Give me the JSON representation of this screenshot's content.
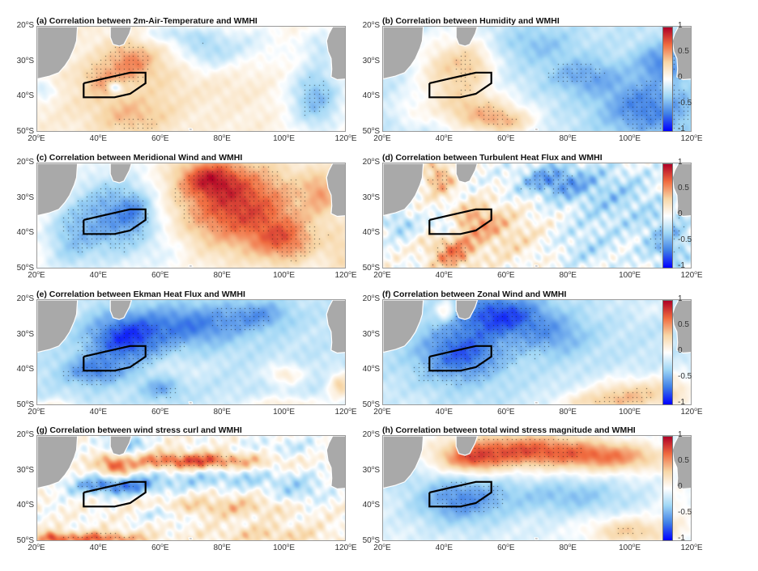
{
  "chart_data": {
    "type": "heatmap",
    "layout": "4x2 grid of correlation maps",
    "xlim": [
      20,
      120
    ],
    "ylim": [
      -50,
      -20
    ],
    "x_ticks": [
      {
        "v": 20,
        "label": "20",
        "unit": "E"
      },
      {
        "v": 40,
        "label": "40",
        "unit": "E"
      },
      {
        "v": 60,
        "label": "60",
        "unit": "E"
      },
      {
        "v": 80,
        "label": "80",
        "unit": "E"
      },
      {
        "v": 100,
        "label": "100",
        "unit": "E"
      },
      {
        "v": 120,
        "label": "120",
        "unit": "E"
      }
    ],
    "y_ticks": [
      {
        "v": -20,
        "label": "20",
        "unit": "S"
      },
      {
        "v": -30,
        "label": "30",
        "unit": "S"
      },
      {
        "v": -40,
        "label": "40",
        "unit": "S"
      },
      {
        "v": -50,
        "label": "50",
        "unit": "S"
      }
    ],
    "degree_symbol": "o",
    "colorbar": {
      "range": [
        -1,
        1
      ],
      "ticks": [
        {
          "v": 1,
          "label": "1"
        },
        {
          "v": 0.5,
          "label": "0.5"
        },
        {
          "v": 0,
          "label": "0"
        },
        {
          "v": -0.5,
          "label": "-0.5"
        },
        {
          "v": -1,
          "label": "-1"
        }
      ],
      "colors": [
        "#0000ff",
        "#3f7fe6",
        "#9fd6f5",
        "#ffffff",
        "#f7d6a6",
        "#f06b3f",
        "#b00026"
      ]
    },
    "box_region": [
      [
        35,
        -36
      ],
      [
        50,
        -33
      ],
      [
        55,
        -33
      ],
      [
        55,
        -36
      ],
      [
        50,
        -39
      ],
      [
        45,
        -40
      ],
      [
        35,
        -40
      ],
      [
        35,
        -36
      ]
    ],
    "land_color": "#a9a9a9",
    "panels": [
      {
        "id": "a",
        "title": "(a) Correlation between 2m-Air-Temperature and WMHI",
        "colorbar": false,
        "base": 0.12,
        "blobs": [
          [
            50,
            -30,
            8,
            6,
            0.45
          ],
          [
            40,
            -35,
            6,
            5,
            0.3
          ],
          [
            50,
            -45,
            12,
            6,
            0.3
          ],
          [
            30,
            -40,
            8,
            6,
            0.05
          ],
          [
            45,
            -37,
            2,
            1.5,
            -0.5
          ],
          [
            75,
            -27,
            10,
            5,
            -0.35
          ],
          [
            65,
            -22,
            12,
            3,
            -0.3
          ],
          [
            90,
            -24,
            12,
            6,
            -0.2
          ],
          [
            110,
            -40,
            9,
            10,
            -0.55
          ],
          [
            112,
            -25,
            6,
            5,
            -0.25
          ],
          [
            80,
            -38,
            12,
            5,
            0.05
          ],
          [
            22,
            -38,
            4,
            3,
            -0.3
          ],
          [
            62,
            -35,
            8,
            10,
            0.1
          ]
        ],
        "stipple": [
          [
            44,
            -30,
            12,
            8,
            0.4
          ],
          [
            52,
            -48,
            8,
            3,
            0.3
          ],
          [
            108,
            -42,
            12,
            10,
            -0.5
          ],
          [
            75,
            -28,
            8,
            4,
            -0.3
          ],
          [
            90,
            -21,
            10,
            2,
            -0.3
          ]
        ]
      },
      {
        "id": "b",
        "title": "(b) Correlation between Humidity and WMHI",
        "colorbar": true,
        "base": -0.2,
        "blobs": [
          [
            42,
            -32,
            12,
            10,
            0.5
          ],
          [
            50,
            -44,
            14,
            6,
            0.45
          ],
          [
            60,
            -47,
            10,
            4,
            0.4
          ],
          [
            50,
            -30,
            6,
            6,
            0.2
          ],
          [
            105,
            -43,
            15,
            8,
            -0.45
          ],
          [
            85,
            -34,
            12,
            5,
            -0.3
          ],
          [
            110,
            -30,
            8,
            5,
            -0.4
          ],
          [
            70,
            -25,
            12,
            5,
            -0.2
          ],
          [
            28,
            -44,
            6,
            4,
            0.15
          ]
        ],
        "stipple": [
          [
            48,
            -33,
            6,
            8,
            0.4
          ],
          [
            58,
            -44,
            8,
            4,
            0.4
          ],
          [
            108,
            -43,
            12,
            8,
            -0.5
          ],
          [
            82,
            -33,
            10,
            3,
            -0.35
          ],
          [
            115,
            -29,
            4,
            4,
            -0.4
          ]
        ]
      },
      {
        "id": "c",
        "title": "(c) Correlation between Meridional Wind and WMHI",
        "colorbar": false,
        "base": 0.05,
        "blobs": [
          [
            45,
            -35,
            14,
            12,
            -0.6
          ],
          [
            52,
            -34,
            5,
            5,
            -0.25
          ],
          [
            30,
            -42,
            8,
            10,
            -0.3
          ],
          [
            85,
            -32,
            20,
            12,
            0.75
          ],
          [
            100,
            -42,
            10,
            6,
            0.45
          ],
          [
            75,
            -24,
            10,
            5,
            0.5
          ],
          [
            112,
            -28,
            6,
            6,
            0.35
          ],
          [
            62,
            -45,
            8,
            6,
            -0.1
          ],
          [
            118,
            -45,
            5,
            8,
            0.2
          ]
        ],
        "stipple": [
          [
            42,
            -36,
            14,
            12,
            -0.5
          ],
          [
            85,
            -30,
            22,
            10,
            0.6
          ],
          [
            105,
            -42,
            10,
            6,
            0.5
          ]
        ]
      },
      {
        "id": "d",
        "title": "(d) Correlation between Turbulent Heat Flux and WMHI",
        "colorbar": true,
        "base": 0.0,
        "noise": 0.25,
        "blobs": [
          [
            38,
            -24,
            5,
            5,
            0.5
          ],
          [
            42,
            -45,
            8,
            6,
            0.55
          ],
          [
            50,
            -36,
            8,
            5,
            0.4
          ],
          [
            40,
            -38,
            4,
            3,
            -0.4
          ],
          [
            75,
            -25,
            12,
            5,
            -0.55
          ],
          [
            95,
            -30,
            15,
            10,
            -0.3
          ],
          [
            112,
            -42,
            8,
            8,
            -0.4
          ],
          [
            60,
            -40,
            12,
            8,
            0.25
          ],
          [
            25,
            -37,
            6,
            4,
            -0.3
          ],
          [
            85,
            -44,
            10,
            6,
            -0.2
          ]
        ],
        "stipple": [
          [
            40,
            -46,
            8,
            5,
            0.5
          ],
          [
            38,
            -24,
            4,
            4,
            0.5
          ],
          [
            72,
            -25,
            10,
            4,
            -0.5
          ],
          [
            112,
            -40,
            6,
            6,
            -0.5
          ]
        ]
      },
      {
        "id": "e",
        "title": "(e) Correlation between Ekman Heat Flux and WMHI",
        "colorbar": false,
        "base": -0.2,
        "blobs": [
          [
            48,
            -31,
            12,
            7,
            -0.6
          ],
          [
            70,
            -27,
            18,
            6,
            -0.45
          ],
          [
            38,
            -40,
            10,
            4,
            -0.4
          ],
          [
            92,
            -24,
            10,
            4,
            -0.3
          ],
          [
            60,
            -45,
            6,
            3,
            -0.3
          ],
          [
            100,
            -41,
            6,
            3,
            0.35
          ],
          [
            118,
            -44,
            4,
            4,
            0.5
          ],
          [
            100,
            -50,
            15,
            3,
            0.35
          ],
          [
            25,
            -50,
            8,
            2,
            0.3
          ],
          [
            65,
            -39,
            10,
            3,
            0.1
          ],
          [
            30,
            -22,
            3,
            3,
            0.2
          ],
          [
            110,
            -32,
            10,
            6,
            0.0
          ]
        ],
        "stipple": [
          [
            50,
            -33,
            18,
            7,
            -0.55
          ],
          [
            38,
            -41,
            10,
            3,
            -0.45
          ],
          [
            85,
            -25,
            10,
            4,
            -0.4
          ],
          [
            62,
            -46,
            5,
            2,
            -0.4
          ]
        ]
      },
      {
        "id": "f",
        "title": "(f) Correlation between Zonal Wind and WMHI",
        "colorbar": true,
        "base": -0.2,
        "blobs": [
          [
            58,
            -24,
            14,
            6,
            -0.6
          ],
          [
            45,
            -35,
            14,
            8,
            -0.55
          ],
          [
            75,
            -30,
            12,
            6,
            -0.3
          ],
          [
            100,
            -47,
            14,
            5,
            0.55
          ],
          [
            85,
            -49,
            12,
            3,
            0.3
          ],
          [
            115,
            -45,
            8,
            6,
            0.25
          ],
          [
            40,
            -23,
            3,
            3,
            0.4
          ],
          [
            105,
            -22,
            8,
            3,
            0.1
          ],
          [
            25,
            -48,
            10,
            3,
            0.05
          ]
        ],
        "stipple": [
          [
            55,
            -30,
            20,
            10,
            -0.55
          ],
          [
            42,
            -40,
            14,
            4,
            -0.5
          ],
          [
            97,
            -47,
            10,
            4,
            0.5
          ]
        ]
      },
      {
        "id": "g",
        "title": "(g) Correlation between wind stress curl and WMHI",
        "colorbar": false,
        "base": 0.05,
        "noise": 0.22,
        "blobs": [
          [
            70,
            -27,
            22,
            2.5,
            0.7
          ],
          [
            45,
            -29,
            5,
            3,
            0.6
          ],
          [
            45,
            -34,
            15,
            3,
            -0.7
          ],
          [
            80,
            -32,
            25,
            3,
            -0.35
          ],
          [
            48,
            -22,
            6,
            3,
            -0.5
          ],
          [
            80,
            -40,
            25,
            3,
            0.3
          ],
          [
            40,
            -49,
            15,
            2,
            0.6
          ],
          [
            25,
            -49,
            5,
            2,
            0.5
          ],
          [
            95,
            -48,
            20,
            3,
            0.25
          ],
          [
            100,
            -23,
            15,
            3,
            -0.2
          ],
          [
            60,
            -42,
            8,
            2,
            -0.3
          ],
          [
            105,
            -36,
            10,
            4,
            -0.3
          ]
        ],
        "stipple": [
          [
            70,
            -27,
            16,
            2,
            0.6
          ],
          [
            42,
            -34,
            10,
            2,
            -0.55
          ],
          [
            40,
            -49,
            12,
            2,
            0.5
          ]
        ]
      },
      {
        "id": "h",
        "title": "(h) Correlation between total wind stress magnitude and WMHI",
        "colorbar": true,
        "base": -0.1,
        "blobs": [
          [
            65,
            -24,
            25,
            5,
            0.8
          ],
          [
            95,
            -26,
            18,
            4,
            0.55
          ],
          [
            48,
            -27,
            10,
            4,
            0.5
          ],
          [
            45,
            -38,
            15,
            7,
            -0.5
          ],
          [
            80,
            -37,
            20,
            5,
            -0.3
          ],
          [
            100,
            -47,
            14,
            4,
            0.45
          ],
          [
            115,
            -40,
            6,
            8,
            0.15
          ],
          [
            25,
            -26,
            4,
            6,
            -0.35
          ]
        ],
        "stipple": [
          [
            65,
            -24,
            20,
            5,
            0.7
          ],
          [
            48,
            -37,
            12,
            5,
            -0.5
          ],
          [
            98,
            -48,
            10,
            2,
            0.5
          ]
        ]
      }
    ]
  },
  "land": {
    "africa": [
      [
        20,
        -20
      ],
      [
        33,
        -20
      ],
      [
        32.7,
        -24
      ],
      [
        32,
        -26
      ],
      [
        30.5,
        -29
      ],
      [
        29,
        -31
      ],
      [
        27,
        -33
      ],
      [
        24,
        -34
      ],
      [
        20,
        -34.8
      ]
    ],
    "madagascar": [
      [
        43.6,
        -20
      ],
      [
        50.5,
        -20
      ],
      [
        49.8,
        -22
      ],
      [
        48,
        -25
      ],
      [
        46.5,
        -25.5
      ],
      [
        44.5,
        -25
      ],
      [
        43.6,
        -23
      ]
    ],
    "australia": [
      [
        115.5,
        -20
      ],
      [
        120,
        -20
      ],
      [
        120,
        -34.8
      ],
      [
        117,
        -35
      ],
      [
        115,
        -34.2
      ],
      [
        115.2,
        -32
      ],
      [
        115,
        -29
      ],
      [
        114,
        -27
      ],
      [
        113.5,
        -24
      ],
      [
        114.3,
        -22
      ]
    ],
    "kerguelen": [
      [
        69,
        -48.8
      ],
      [
        70,
        -48.8
      ],
      [
        70.2,
        -49.3
      ],
      [
        69.2,
        -49.4
      ]
    ]
  }
}
